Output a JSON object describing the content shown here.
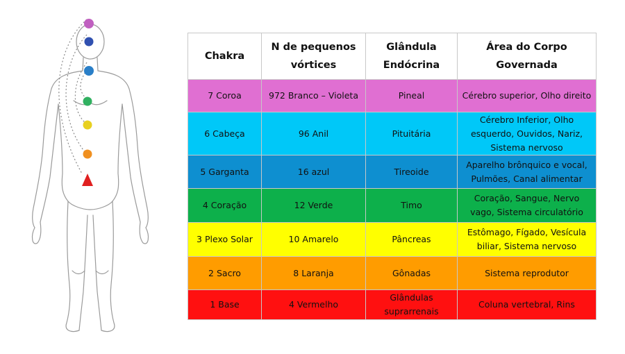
{
  "table": {
    "headers": [
      "Chakra",
      "N de pequenos vórtices",
      "Glândula Endócrina",
      "Área do Corpo Governada"
    ],
    "rows": [
      {
        "color": "#e06fd2",
        "cells": [
          "7 Coroa",
          "972 Branco – Violeta",
          "Pineal",
          "Cérebro superior, Olho direito"
        ]
      },
      {
        "color": "#00c8f8",
        "cells": [
          "6 Cabeça",
          "96 Anil",
          "Pituitária",
          "Cérebro Inferior, Olho esquerdo, Ouvidos, Nariz, Sistema nervoso"
        ]
      },
      {
        "color": "#0e8fd0",
        "cells": [
          "5 Garganta",
          "16 azul",
          "Tireoide",
          "Aparelho brônquico e vocal, Pulmões, Canal alimentar"
        ]
      },
      {
        "color": "#0db04b",
        "cells": [
          "4 Coração",
          "12 Verde",
          "Timo",
          "Coração, Sangue, Nervo vago, Sistema circulatório"
        ]
      },
      {
        "color": "#ffff00",
        "cells": [
          "3 Plexo Solar",
          "10 Amarelo",
          "Pâncreas",
          "Estômago, Fígado, Vesícula biliar, Sistema nervoso"
        ]
      },
      {
        "color": "#ff9c00",
        "cells": [
          "2 Sacro",
          "8 Laranja",
          "Gônadas",
          "Sistema reprodutor"
        ]
      },
      {
        "color": "#ff1010",
        "cells": [
          "1 Base",
          "4 Vermelho",
          "Glândulas suprarrenais",
          "Coluna vertebral, Rins"
        ]
      }
    ]
  },
  "figure": {
    "chakra_points": [
      {
        "name": "crown",
        "color": "#c060c0"
      },
      {
        "name": "third-eye",
        "color": "#3050b0"
      },
      {
        "name": "throat",
        "color": "#2a7fc8"
      },
      {
        "name": "heart",
        "color": "#30b060"
      },
      {
        "name": "solar-plexus",
        "color": "#e8d020"
      },
      {
        "name": "sacral",
        "color": "#f09020"
      },
      {
        "name": "root",
        "color": "#e02020"
      }
    ]
  }
}
